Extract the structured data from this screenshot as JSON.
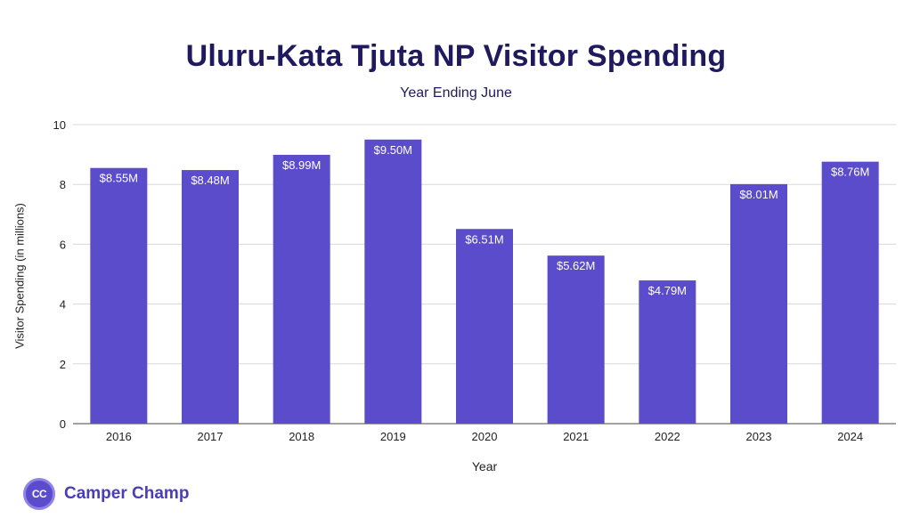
{
  "brand": {
    "name": "Camper Champ",
    "logo_text": "CC"
  },
  "colors": {
    "bar": "#5b4ccc",
    "title": "#1f1a5e",
    "grid": "#d9d9d9"
  },
  "chart_data": {
    "type": "bar",
    "title": "Uluru-Kata Tjuta NP Visitor Spending",
    "subtitle": "Year Ending June",
    "xlabel": "Year",
    "ylabel": "Visitor Spending (in millions)",
    "ylim": [
      0,
      10
    ],
    "yticks": [
      0,
      2,
      4,
      6,
      8,
      10
    ],
    "grid": true,
    "categories": [
      "2016",
      "2017",
      "2018",
      "2019",
      "2020",
      "2021",
      "2022",
      "2023",
      "2024"
    ],
    "values": [
      8.55,
      8.48,
      8.99,
      9.5,
      6.51,
      5.62,
      4.79,
      8.01,
      8.76
    ],
    "data_labels": [
      "$8.55M",
      "$8.48M",
      "$8.99M",
      "$9.50M",
      "$6.51M",
      "$5.62M",
      "$4.79M",
      "$8.01M",
      "$8.76M"
    ]
  }
}
